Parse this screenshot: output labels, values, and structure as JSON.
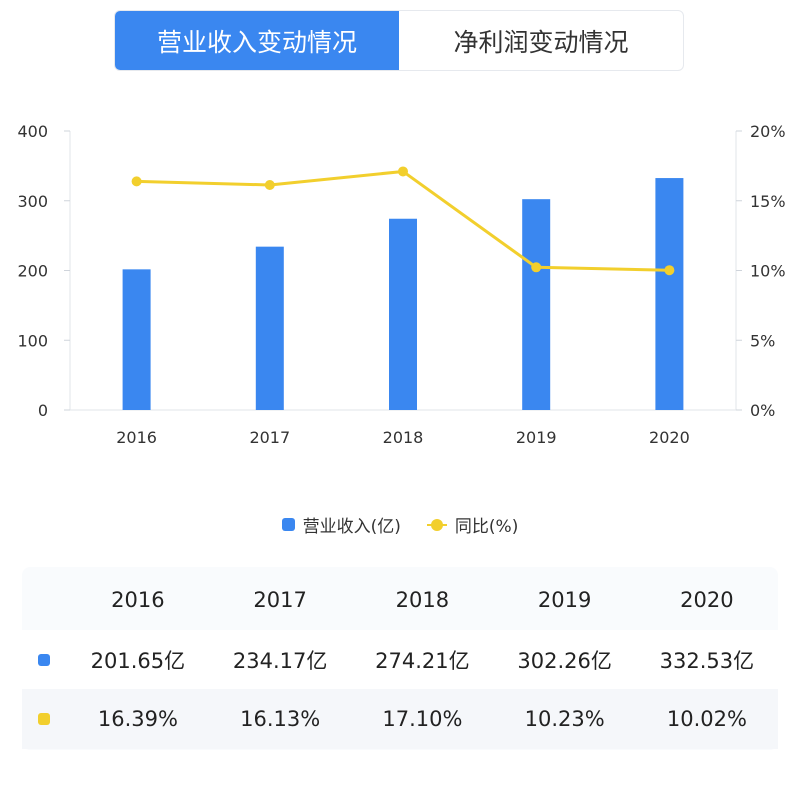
{
  "tabs": [
    {
      "label": "营业收入变动情况",
      "active": true
    },
    {
      "label": "净利润变动情况",
      "active": false
    }
  ],
  "chart_data": {
    "type": "bar",
    "categories": [
      "2016",
      "2017",
      "2018",
      "2019",
      "2020"
    ],
    "series": [
      {
        "name": "营业收入(亿)",
        "type": "bar",
        "axis": "left",
        "color": "#3a87f0",
        "values": [
          201.65,
          234.17,
          274.21,
          302.26,
          332.53
        ]
      },
      {
        "name": "同比(%)",
        "type": "line",
        "axis": "right",
        "color": "#f2cf2d",
        "values": [
          16.39,
          16.13,
          17.1,
          10.23,
          10.02
        ]
      }
    ],
    "y_left": {
      "ticks": [
        "0",
        "100",
        "200",
        "300",
        "400"
      ],
      "lim": [
        0,
        400
      ]
    },
    "y_right": {
      "ticks": [
        "0%",
        "5%",
        "10%",
        "15%",
        "20%"
      ],
      "lim": [
        0,
        20
      ]
    },
    "legend_position": "bottom-center",
    "grid": false
  },
  "table": {
    "headers": [
      "2016",
      "2017",
      "2018",
      "2019",
      "2020"
    ],
    "rows": [
      {
        "marker_color": "#3a87f0",
        "cells": [
          "201.65亿",
          "234.17亿",
          "274.21亿",
          "302.26亿",
          "332.53亿"
        ]
      },
      {
        "marker_color": "#f2cf2d",
        "cells": [
          "16.39%",
          "16.13%",
          "17.10%",
          "10.23%",
          "10.02%"
        ]
      }
    ]
  }
}
